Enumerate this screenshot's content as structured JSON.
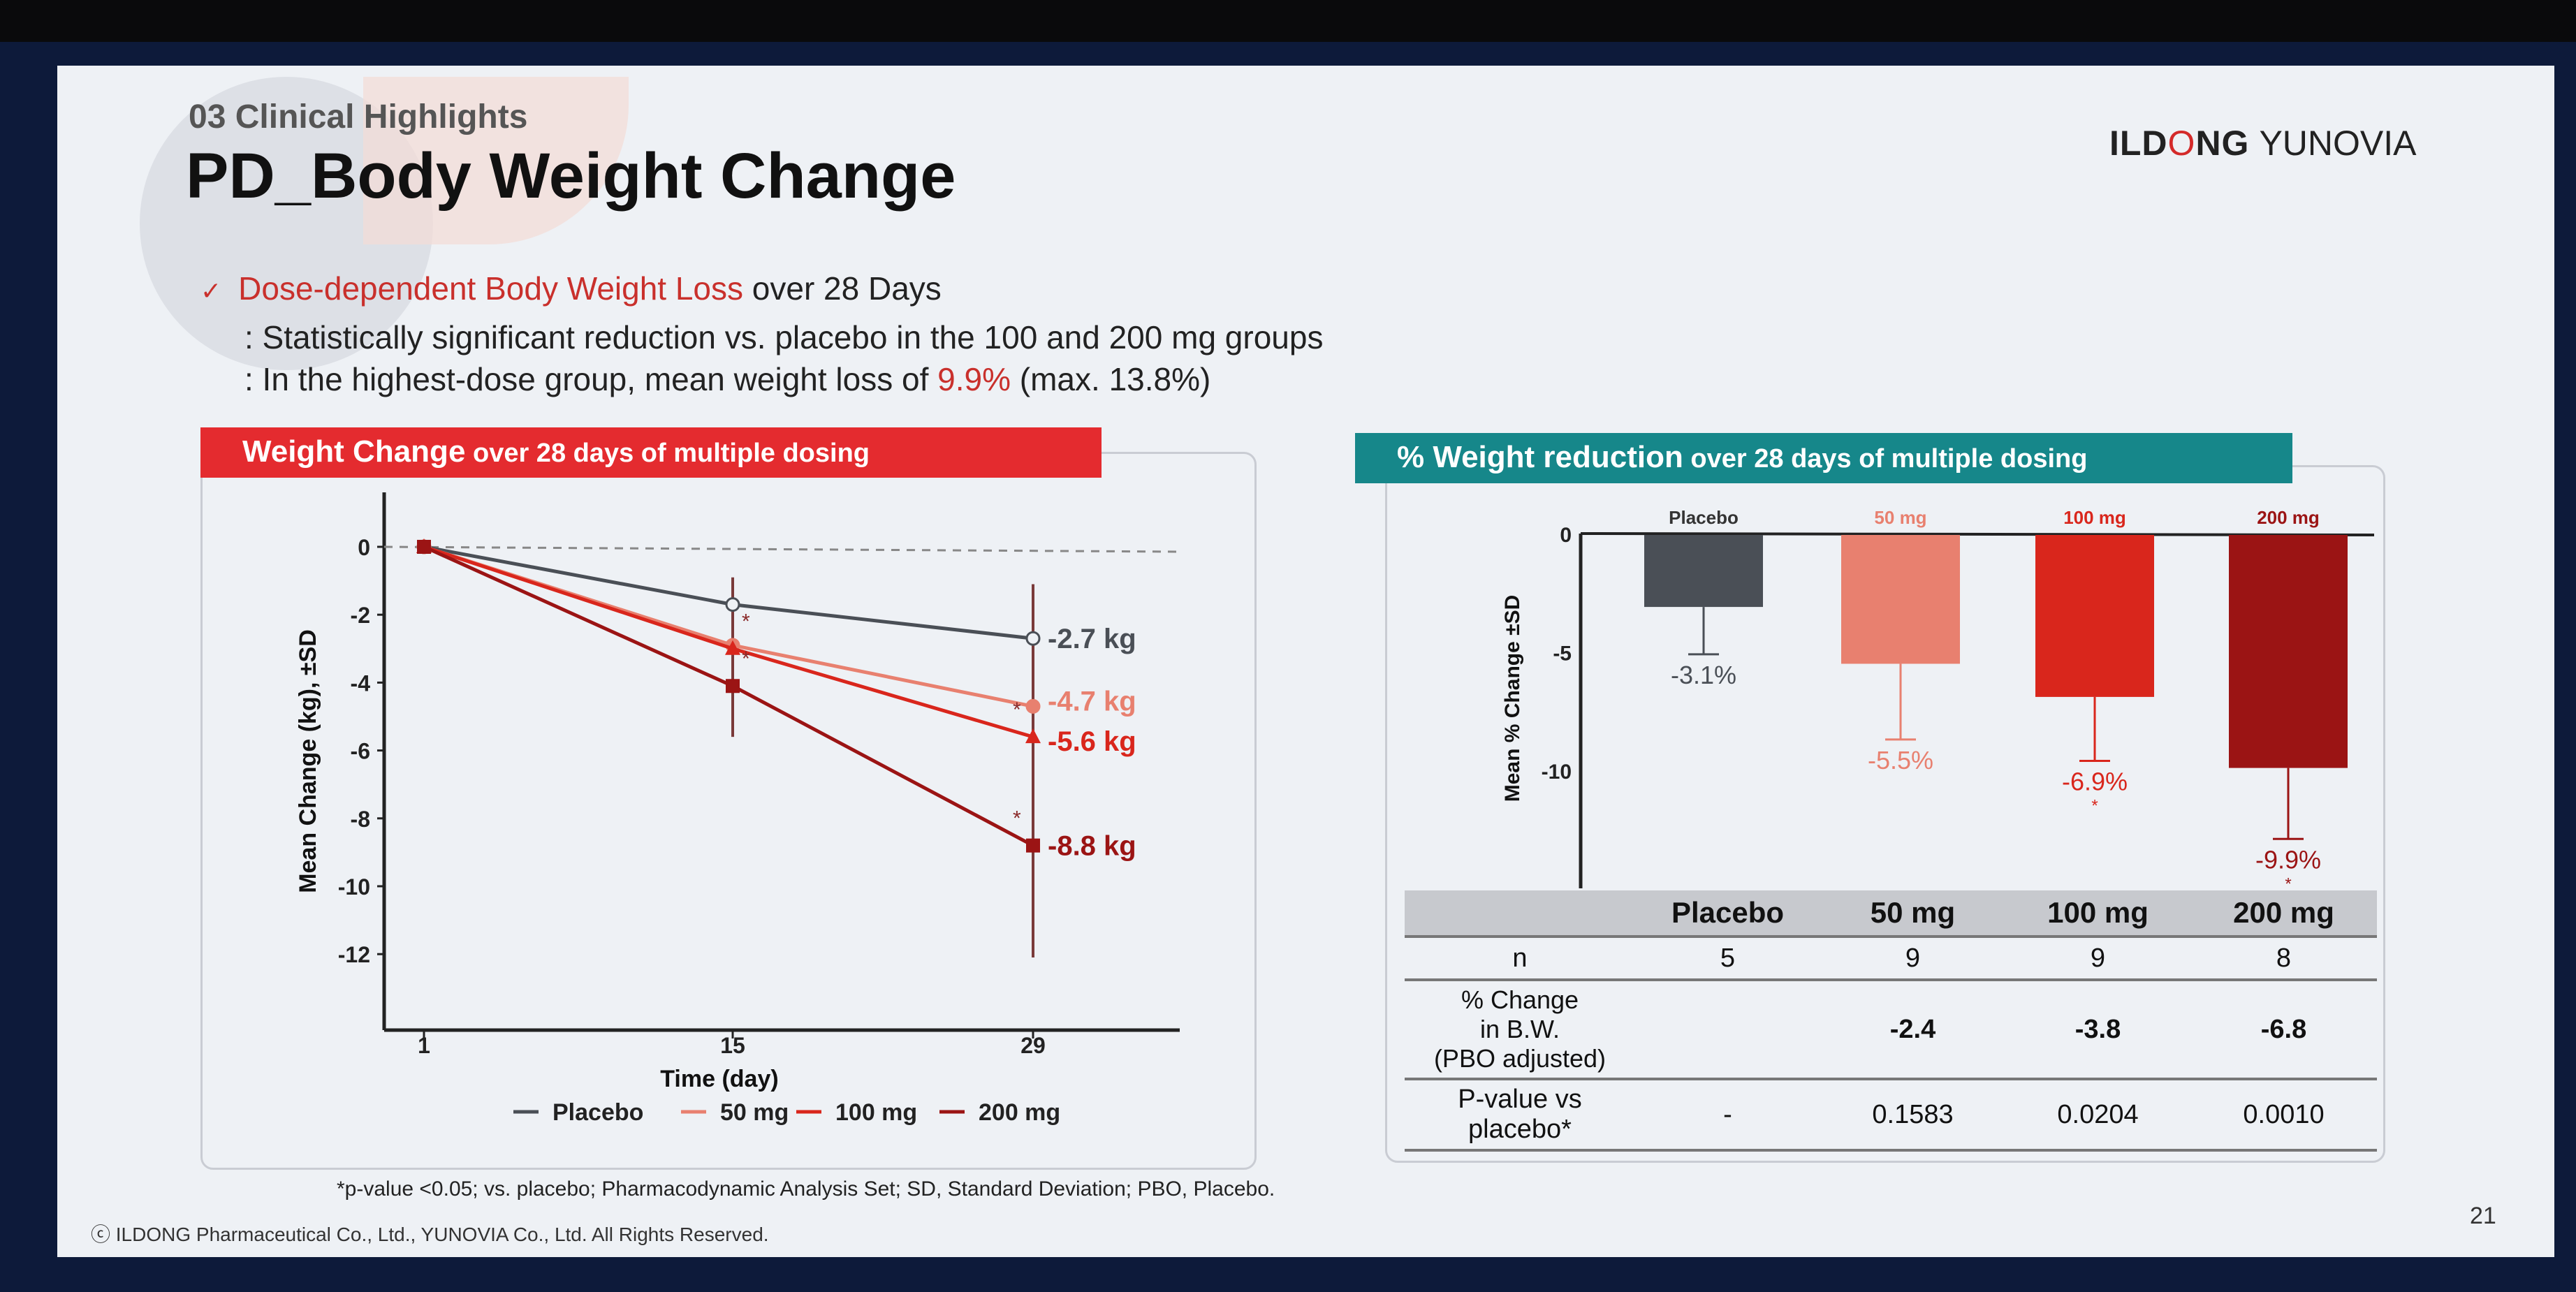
{
  "header": {
    "section": "03 Clinical Highlights",
    "title": "PD_Body Weight Change",
    "logo_text": "ILDONG YUNOVIA"
  },
  "bullets": {
    "main_red": "Dose-dependent Body Weight Loss",
    "main_rest": " over 28 Days",
    "sub1": ": Statistically significant reduction vs. placebo in the 100 and 200 mg groups",
    "sub2_a": ": In the highest-dose group,  mean weight loss of ",
    "sub2_red": "9.9%",
    "sub2_b": " (max. 13.8%)"
  },
  "left_banner": {
    "bold": "Weight Change",
    "rest": " over 28 days of multiple dosing"
  },
  "right_banner": {
    "bold": "% Weight reduction",
    "rest": " over 28 days of multiple dosing"
  },
  "colors": {
    "placebo": "#4a4f56",
    "50 mg": "#e8806f",
    "100 mg": "#d9261c",
    "200 mg": "#9b1414",
    "left_banner": "#e42b2f",
    "right_banner": "#16878a"
  },
  "chart_data": [
    {
      "type": "line",
      "xlabel": "Time (day)",
      "ylabel": "Mean Change (kg), ±SD",
      "x": [
        1,
        15,
        29
      ],
      "ylim": [
        -14,
        0.8
      ],
      "yticks": [
        0,
        -2,
        -4,
        -6,
        -8,
        -10,
        -12
      ],
      "xticks": [
        1,
        15,
        29
      ],
      "legend": "bottom",
      "series": [
        {
          "name": "Placebo",
          "values": [
            0,
            -1.7,
            -2.7
          ],
          "end_label": "-2.7 kg",
          "marker": "open-circle"
        },
        {
          "name": "50 mg",
          "values": [
            0,
            -2.9,
            -4.7
          ],
          "end_label": "-4.7 kg",
          "marker": "circle"
        },
        {
          "name": "100 mg",
          "values": [
            0,
            -3.0,
            -5.6
          ],
          "end_label": "-5.6 kg",
          "marker": "triangle"
        },
        {
          "name": "200 mg",
          "values": [
            0,
            -4.1,
            -8.8
          ],
          "end_label": "-8.8 kg",
          "marker": "square"
        }
      ],
      "errorbars": {
        "day15": [
          -0.9,
          -5.6
        ],
        "day29": [
          -1.1,
          -12.1
        ]
      },
      "significance_marks": "*"
    },
    {
      "type": "bar",
      "ylabel": "Mean % Change ±SD",
      "ylim": [
        -13,
        0
      ],
      "yticks": [
        0,
        -5,
        -10
      ],
      "categories": [
        "Placebo",
        "50 mg",
        "100 mg",
        "200 mg"
      ],
      "values": [
        -3.1,
        -5.5,
        -6.9,
        -9.9
      ],
      "sd": [
        2.0,
        3.2,
        2.7,
        3.0
      ],
      "labels": [
        "-3.1%",
        "-5.5%",
        "-6.9%",
        "-9.9%"
      ],
      "significant": [
        false,
        false,
        true,
        true
      ]
    }
  ],
  "table": {
    "headers": [
      "",
      "Placebo",
      "50 mg",
      "100 mg",
      "200 mg"
    ],
    "rows": [
      {
        "label": "n",
        "cells": [
          "5",
          "9",
          "9",
          "8"
        ]
      },
      {
        "label": "% Change\nin B.W.\n(PBO adjusted)",
        "cells": [
          "",
          "-2.4",
          "-3.8",
          "-6.8"
        ]
      },
      {
        "label": "P-value vs\nplacebo*",
        "cells": [
          "-",
          "0.1583",
          "0.0204",
          "0.0010"
        ]
      }
    ]
  },
  "footnote": "*p-value <0.05; vs. placebo; Pharmacodynamic Analysis Set; SD, Standard Deviation; PBO, Placebo.",
  "copyright": "ⓒ ILDONG Pharmaceutical Co., Ltd., YUNOVIA Co., Ltd. All Rights Reserved.",
  "page_number": "21"
}
